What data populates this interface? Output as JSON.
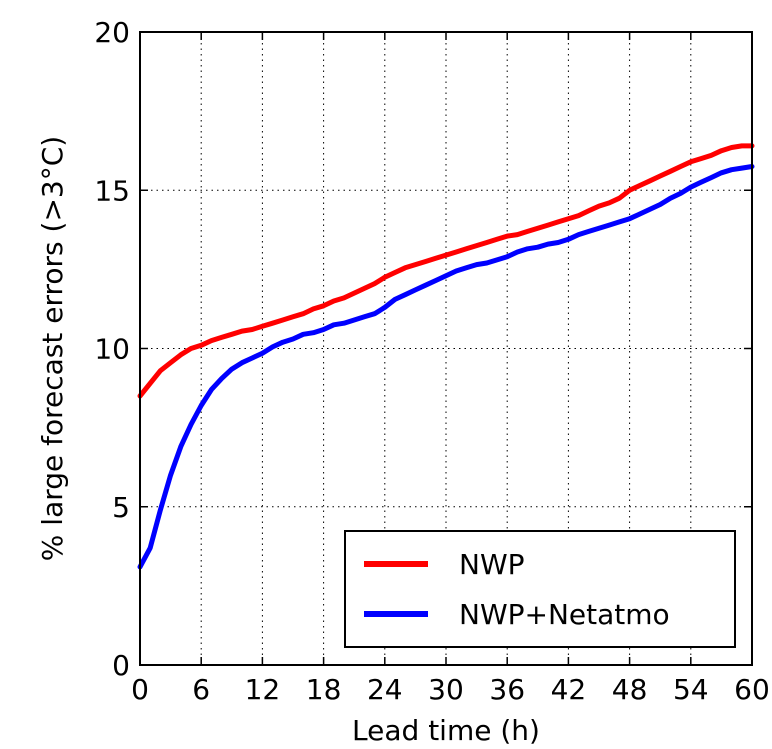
{
  "chart_data": {
    "type": "line",
    "title": "",
    "xlabel": "Lead time (h)",
    "ylabel": "% large forecast errors (>3°C)",
    "xlim": [
      0,
      60
    ],
    "ylim": [
      0,
      20
    ],
    "xticks": [
      0,
      6,
      12,
      18,
      24,
      30,
      36,
      42,
      48,
      54,
      60
    ],
    "yticks": [
      0,
      5,
      10,
      15,
      20
    ],
    "grid": true,
    "legend_position": "lower-right",
    "series": [
      {
        "name": "NWP",
        "color": "#ff0000",
        "x": [
          0,
          1,
          2,
          3,
          4,
          5,
          6,
          7,
          8,
          9,
          10,
          11,
          12,
          13,
          14,
          15,
          16,
          17,
          18,
          19,
          20,
          21,
          22,
          23,
          24,
          25,
          26,
          27,
          28,
          29,
          30,
          31,
          32,
          33,
          34,
          35,
          36,
          37,
          38,
          39,
          40,
          41,
          42,
          43,
          44,
          45,
          46,
          47,
          48,
          49,
          50,
          51,
          52,
          53,
          54,
          55,
          56,
          57,
          58,
          59,
          60
        ],
        "y": [
          8.5,
          8.9,
          9.3,
          9.55,
          9.8,
          10.0,
          10.1,
          10.25,
          10.35,
          10.45,
          10.55,
          10.6,
          10.7,
          10.8,
          10.9,
          11.0,
          11.1,
          11.25,
          11.35,
          11.5,
          11.6,
          11.75,
          11.9,
          12.05,
          12.25,
          12.4,
          12.55,
          12.65,
          12.75,
          12.85,
          12.95,
          13.05,
          13.15,
          13.25,
          13.35,
          13.45,
          13.55,
          13.6,
          13.7,
          13.8,
          13.9,
          14.0,
          14.1,
          14.2,
          14.35,
          14.5,
          14.6,
          14.75,
          15.0,
          15.15,
          15.3,
          15.45,
          15.6,
          15.75,
          15.9,
          16.0,
          16.1,
          16.25,
          16.35,
          16.4,
          16.4
        ]
      },
      {
        "name": "NWP+Netatmo",
        "color": "#0000ff",
        "x": [
          0,
          1,
          2,
          3,
          4,
          5,
          6,
          7,
          8,
          9,
          10,
          11,
          12,
          13,
          14,
          15,
          16,
          17,
          18,
          19,
          20,
          21,
          22,
          23,
          24,
          25,
          26,
          27,
          28,
          29,
          30,
          31,
          32,
          33,
          34,
          35,
          36,
          37,
          38,
          39,
          40,
          41,
          42,
          43,
          44,
          45,
          46,
          47,
          48,
          49,
          50,
          51,
          52,
          53,
          54,
          55,
          56,
          57,
          58,
          59,
          60
        ],
        "y": [
          3.1,
          3.7,
          4.9,
          6.0,
          6.9,
          7.6,
          8.2,
          8.7,
          9.05,
          9.35,
          9.55,
          9.7,
          9.85,
          10.05,
          10.2,
          10.3,
          10.45,
          10.5,
          10.6,
          10.75,
          10.8,
          10.9,
          11.0,
          11.1,
          11.3,
          11.55,
          11.7,
          11.85,
          12.0,
          12.15,
          12.3,
          12.45,
          12.55,
          12.65,
          12.7,
          12.8,
          12.9,
          13.05,
          13.15,
          13.2,
          13.3,
          13.35,
          13.45,
          13.6,
          13.7,
          13.8,
          13.9,
          14.0,
          14.1,
          14.25,
          14.4,
          14.55,
          14.75,
          14.9,
          15.1,
          15.25,
          15.4,
          15.55,
          15.65,
          15.7,
          15.75
        ]
      }
    ]
  }
}
